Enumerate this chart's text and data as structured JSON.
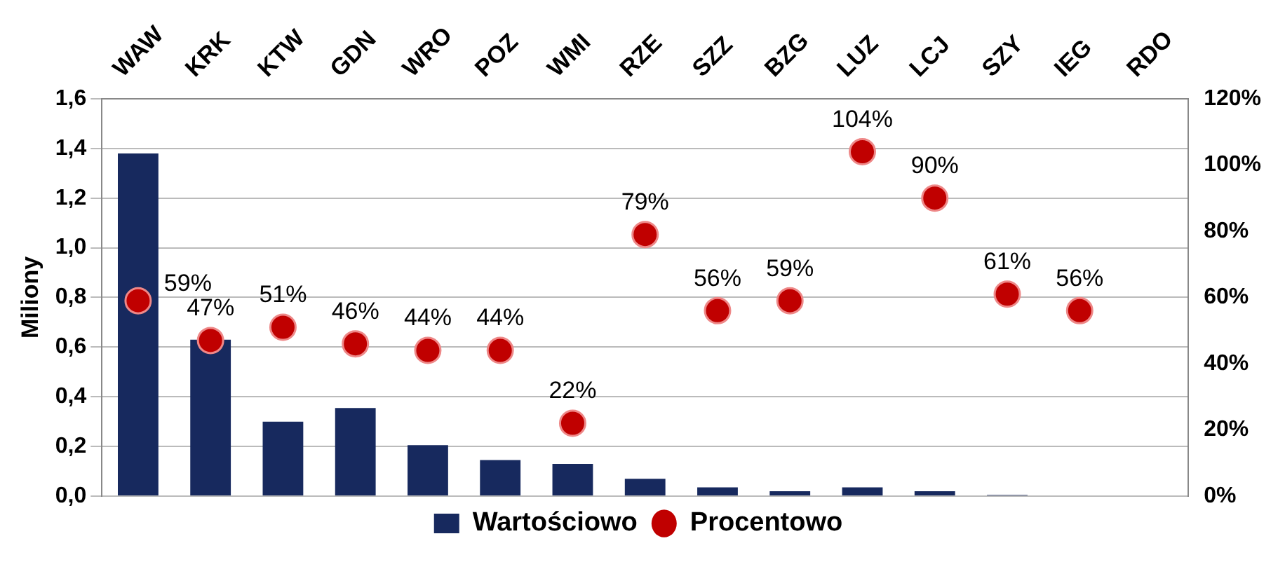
{
  "chart_data": {
    "type": "bar",
    "ylabel": "Miliony",
    "categories": [
      "WAW",
      "KRK",
      "KTW",
      "GDN",
      "WRO",
      "POZ",
      "WMI",
      "RZE",
      "SZZ",
      "BZG",
      "LUZ",
      "LCJ",
      "SZY",
      "IEG",
      "RDO"
    ],
    "series": [
      {
        "name": "Wartościowo",
        "color": "#17295e",
        "values": [
          1.38,
          0.63,
          0.3,
          0.355,
          0.205,
          0.145,
          0.13,
          0.07,
          0.035,
          0.02,
          0.035,
          0.02,
          0.005,
          0,
          0
        ]
      },
      {
        "name": "Procentowo",
        "type": "scatter",
        "axis": "y2",
        "color": "#c00000",
        "marker": "circle",
        "values": [
          59,
          47,
          51,
          46,
          44,
          44,
          22,
          79,
          56,
          59,
          104,
          90,
          61,
          56,
          null
        ],
        "value_labels": [
          "59%",
          "47%",
          "51%",
          "46%",
          "44%",
          "44%",
          "22%",
          "79%",
          "56%",
          "59%",
          "104%",
          "90%",
          "61%",
          "56%",
          null
        ]
      }
    ],
    "ylim": [
      0,
      1.6
    ],
    "yticks": [
      {
        "value": 0,
        "label": "0,0"
      },
      {
        "value": 0.2,
        "label": "0,2"
      },
      {
        "value": 0.4,
        "label": "0,4"
      },
      {
        "value": 0.6,
        "label": "0,6"
      },
      {
        "value": 0.8,
        "label": "0,8"
      },
      {
        "value": 1,
        "label": "1,0"
      },
      {
        "value": 1.2,
        "label": "1,2"
      },
      {
        "value": 1.4,
        "label": "1,4"
      },
      {
        "value": 1.6,
        "label": "1,6"
      }
    ],
    "y2lim": [
      0,
      120
    ],
    "y2ticks": [
      {
        "value": 0,
        "label": "0%"
      },
      {
        "value": 20,
        "label": "20%"
      },
      {
        "value": 40,
        "label": "40%"
      },
      {
        "value": 60,
        "label": "60%"
      },
      {
        "value": 80,
        "label": "80%"
      },
      {
        "value": 100,
        "label": "100%"
      },
      {
        "value": 120,
        "label": "120%"
      }
    ],
    "grid": "y",
    "legend": "bottom"
  }
}
